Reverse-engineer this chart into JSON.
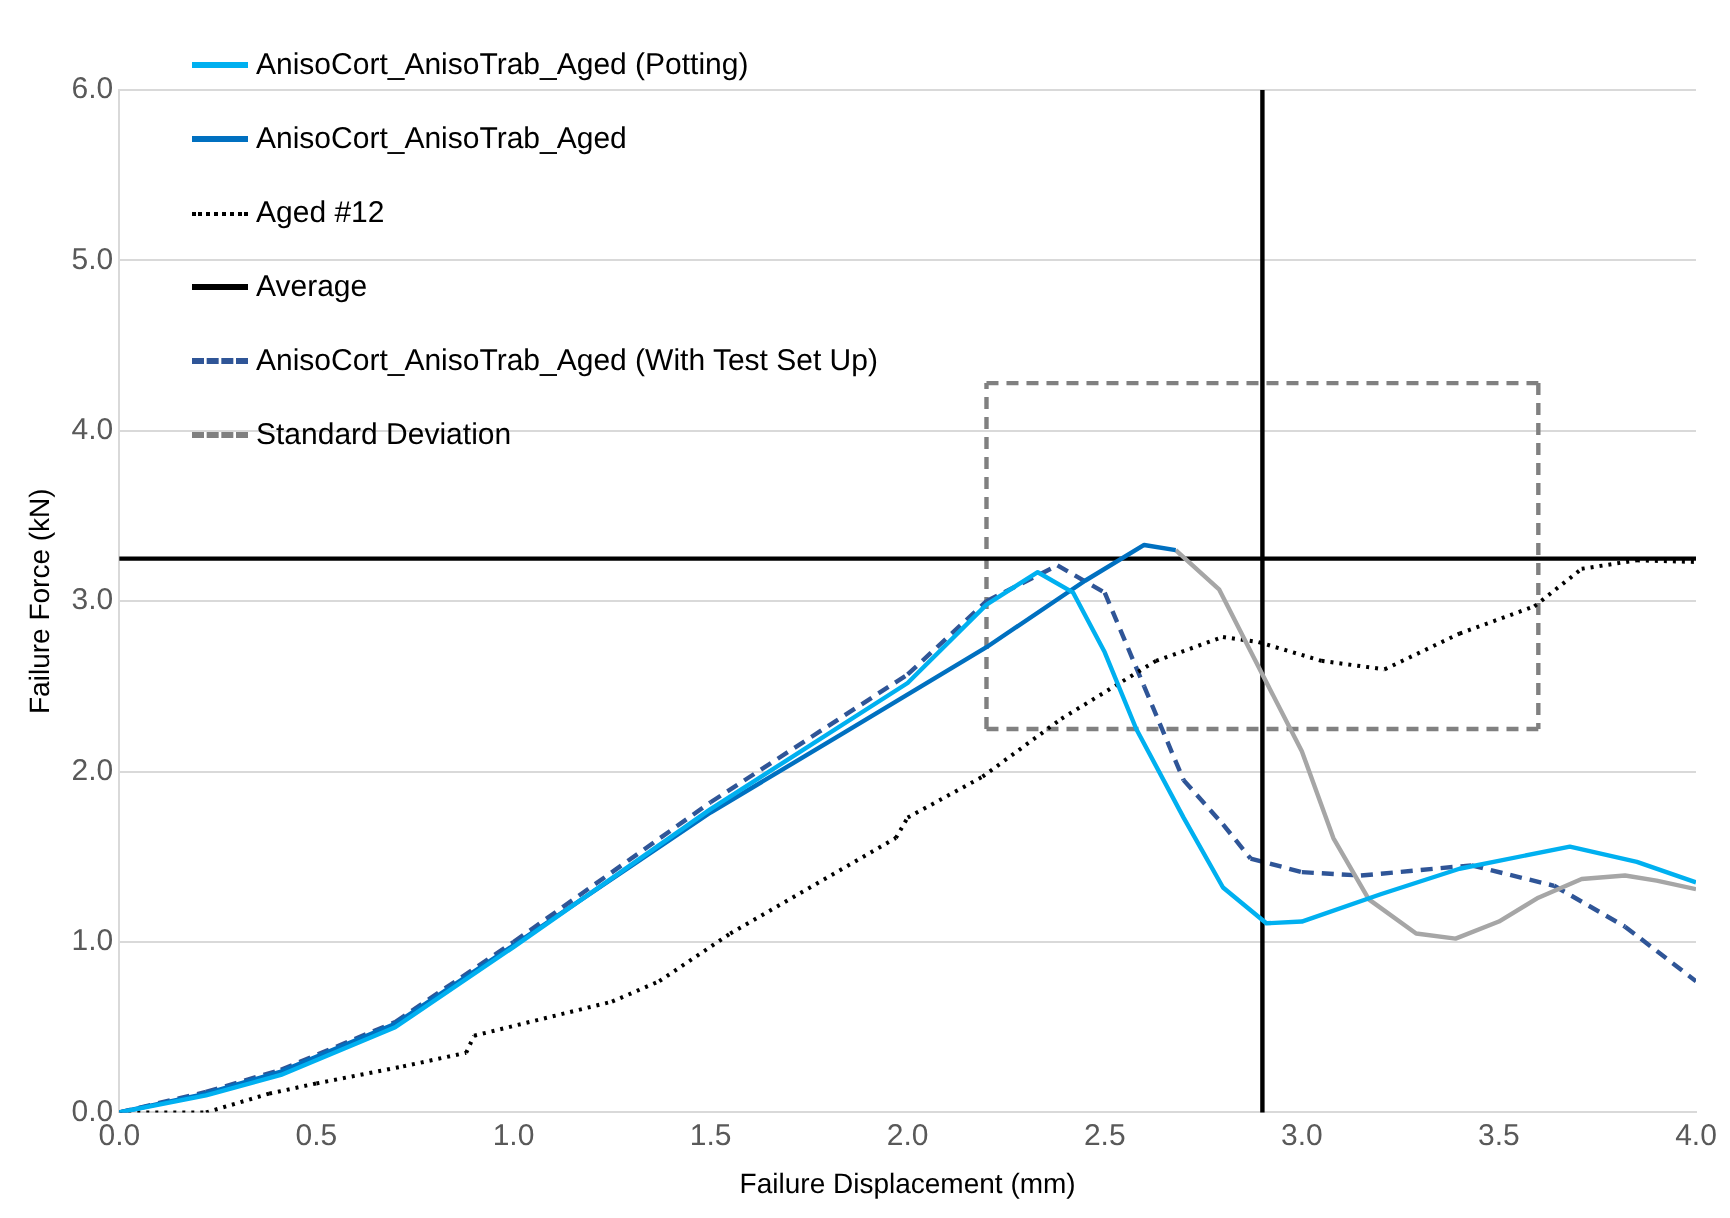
{
  "chart_data": {
    "type": "line",
    "xlabel": "Failure Displacement (mm)",
    "ylabel": "Failure Force (kN)",
    "xlim": [
      0,
      4
    ],
    "ylim": [
      0,
      6
    ],
    "xticks": [
      {
        "value": 0,
        "label": "0.0"
      },
      {
        "value": 0.5,
        "label": "0.5"
      },
      {
        "value": 1,
        "label": "1.0"
      },
      {
        "value": 1.5,
        "label": "1.5"
      },
      {
        "value": 2,
        "label": "2.0"
      },
      {
        "value": 2.5,
        "label": "2.5"
      },
      {
        "value": 3,
        "label": "3.0"
      },
      {
        "value": 3.5,
        "label": "3.5"
      },
      {
        "value": 4,
        "label": "4.0"
      }
    ],
    "yticks": [
      {
        "value": 0,
        "label": "0.0"
      },
      {
        "value": 1,
        "label": "1.0"
      },
      {
        "value": 2,
        "label": "2.0"
      },
      {
        "value": 3,
        "label": "3.0"
      },
      {
        "value": 4,
        "label": "4.0"
      },
      {
        "value": 5,
        "label": "5.0"
      },
      {
        "value": 6,
        "label": "6.0"
      }
    ],
    "grid": "y",
    "legend": "top left",
    "marker": "none",
    "series": [
      {
        "name": "AnisoCort_AnisoTrab_Aged (Potting)",
        "color": "#00b0f0",
        "line_style": "solid",
        "x": [
          0,
          0.22,
          0.41,
          0.7,
          1.0,
          1.5,
          2.0,
          2.2,
          2.33,
          2.42,
          2.5,
          2.58,
          2.7,
          2.8,
          2.91,
          3.0,
          3.2,
          3.4,
          3.68,
          3.85,
          4.0
        ],
        "values": [
          0,
          0.1,
          0.22,
          0.5,
          0.97,
          1.78,
          2.52,
          2.98,
          3.17,
          3.05,
          2.7,
          2.25,
          1.73,
          1.32,
          1.11,
          1.12,
          1.28,
          1.43,
          1.56,
          1.47,
          1.35
        ]
      },
      {
        "name": "AnisoCort_AnisoTrab_Aged",
        "color": "#0070c0",
        "line_style": "solid",
        "x": [
          0,
          0.22,
          0.41,
          0.7,
          1.0,
          1.5,
          1.84,
          2.2,
          2.45,
          2.6,
          2.68
        ],
        "values": [
          0,
          0.11,
          0.24,
          0.52,
          0.98,
          1.76,
          2.23,
          2.73,
          3.12,
          3.33,
          3.3
        ]
      },
      {
        "color": "#a6a6a6",
        "line_style": "solid",
        "x": [
          2.68,
          2.79,
          2.9,
          3.0,
          3.08,
          3.17,
          3.29,
          3.39,
          3.5,
          3.6,
          3.71,
          3.82,
          3.9,
          4.0
        ],
        "values": [
          3.3,
          3.07,
          2.57,
          2.12,
          1.61,
          1.25,
          1.05,
          1.02,
          1.12,
          1.26,
          1.37,
          1.39,
          1.36,
          1.31
        ]
      },
      {
        "name": "Aged #12",
        "color": "#000000",
        "line_style": "dotted",
        "x": [
          0,
          0.22,
          0.38,
          0.5,
          0.72,
          0.88,
          0.9,
          1.25,
          1.37,
          1.55,
          1.97,
          2.0,
          2.19,
          2.39,
          2.63,
          2.8,
          2.89,
          3.05,
          3.21,
          3.4,
          3.59,
          3.71,
          3.85,
          4.0
        ],
        "values": [
          0,
          0,
          0.11,
          0.17,
          0.27,
          0.35,
          0.45,
          0.65,
          0.77,
          1.05,
          1.61,
          1.73,
          1.97,
          2.31,
          2.65,
          2.79,
          2.76,
          2.65,
          2.6,
          2.81,
          2.97,
          3.19,
          3.24,
          3.23
        ]
      },
      {
        "name": "Average",
        "color": "#000000",
        "line_style": "solid",
        "x": [
          2.9,
          2.9,
          2.9,
          0,
          4
        ],
        "values": [
          6,
          0,
          3.25,
          3.25,
          3.25
        ]
      },
      {
        "name": "AnisoCort_AnisoTrab_Aged (With Test Set Up)",
        "color": "#2f5597",
        "line_style": "dashed",
        "x": [
          0,
          0.22,
          0.41,
          0.7,
          1.0,
          1.5,
          2.0,
          2.2,
          2.38,
          2.5,
          2.6,
          2.7,
          2.8,
          2.87,
          3.0,
          3.15,
          3.43,
          3.64,
          3.82,
          4.0
        ],
        "values": [
          0,
          0.12,
          0.25,
          0.53,
          1.0,
          1.82,
          2.57,
          3.0,
          3.21,
          3.05,
          2.5,
          1.95,
          1.69,
          1.49,
          1.41,
          1.39,
          1.45,
          1.33,
          1.09,
          0.77
        ]
      },
      {
        "name": "Standard Deviation",
        "color": "#808080",
        "line_style": "dashed",
        "x": [
          2.2,
          2.2,
          3.6,
          3.6
        ],
        "values": [
          2.25,
          4.28,
          4.28,
          2.25
        ]
      },
      {
        "color": "#808080",
        "line_style": "dashed",
        "x": [
          2.2,
          3.6
        ],
        "values": [
          2.25,
          2.25
        ]
      }
    ]
  }
}
